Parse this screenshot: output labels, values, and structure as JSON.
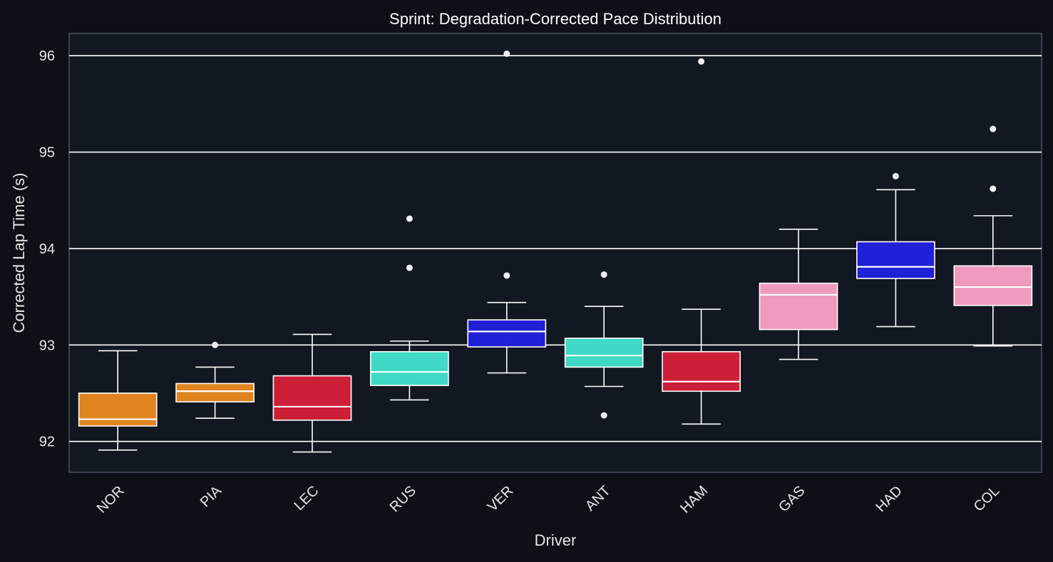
{
  "chart_data": {
    "type": "box",
    "title": "Sprint: Degradation-Corrected Pace Distribution",
    "xlabel": "Driver",
    "ylabel": "Corrected Lap Time (s)",
    "ylim": [
      91.68,
      96.23
    ],
    "yticks": [
      "92",
      "93",
      "94",
      "95",
      "96"
    ],
    "grid": true,
    "categories": [
      "NOR",
      "PIA",
      "LEC",
      "RUS",
      "VER",
      "ANT",
      "HAM",
      "GAS",
      "HAD",
      "COL"
    ],
    "colors": [
      "#e08420",
      "#e08420",
      "#cc1e36",
      "#40d9c5",
      "#2020d6",
      "#40d9c5",
      "#cc1e36",
      "#f09ac0",
      "#2020d6",
      "#f09ac0"
    ],
    "series": [
      {
        "whisker_low": 91.91,
        "q1": 92.16,
        "median": 92.23,
        "q3": 92.5,
        "whisker_high": 92.94,
        "fliers": []
      },
      {
        "whisker_low": 92.24,
        "q1": 92.41,
        "median": 92.52,
        "q3": 92.6,
        "whisker_high": 92.77,
        "fliers": [
          93.0
        ]
      },
      {
        "whisker_low": 91.89,
        "q1": 92.22,
        "median": 92.36,
        "q3": 92.68,
        "whisker_high": 93.11,
        "fliers": []
      },
      {
        "whisker_low": 92.43,
        "q1": 92.58,
        "median": 92.72,
        "q3": 92.93,
        "whisker_high": 93.04,
        "fliers": [
          93.8,
          94.31
        ]
      },
      {
        "whisker_low": 92.71,
        "q1": 92.98,
        "median": 93.14,
        "q3": 93.26,
        "whisker_high": 93.44,
        "fliers": [
          93.72,
          96.02
        ]
      },
      {
        "whisker_low": 92.57,
        "q1": 92.77,
        "median": 92.89,
        "q3": 93.07,
        "whisker_high": 93.4,
        "fliers": [
          92.27,
          93.73
        ]
      },
      {
        "whisker_low": 92.18,
        "q1": 92.52,
        "median": 92.62,
        "q3": 92.93,
        "whisker_high": 93.37,
        "fliers": [
          95.94
        ]
      },
      {
        "whisker_low": 92.85,
        "q1": 93.16,
        "median": 93.52,
        "q3": 93.64,
        "whisker_high": 94.2,
        "fliers": []
      },
      {
        "whisker_low": 93.19,
        "q1": 93.69,
        "median": 93.81,
        "q3": 94.07,
        "whisker_high": 94.61,
        "fliers": [
          94.75
        ]
      },
      {
        "whisker_low": 92.99,
        "q1": 93.41,
        "median": 93.6,
        "q3": 93.82,
        "whisker_high": 94.34,
        "fliers": [
          94.62,
          95.24
        ]
      }
    ]
  }
}
